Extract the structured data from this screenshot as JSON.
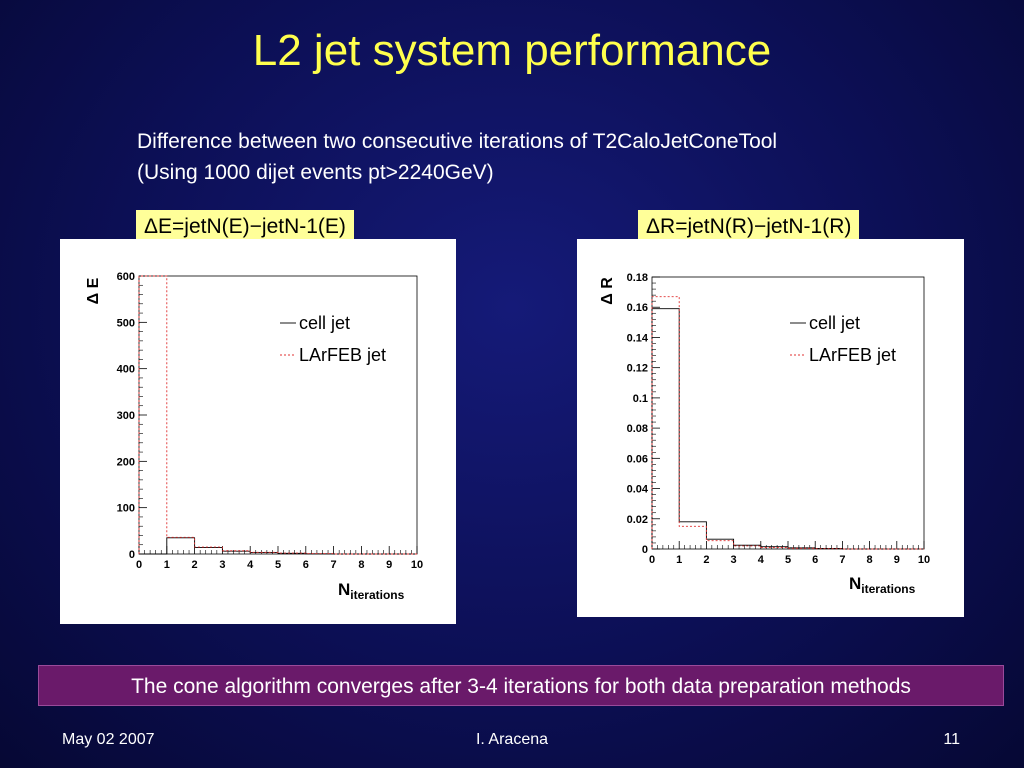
{
  "slide": {
    "title": "L2 jet system performance",
    "subtitle_line1": "Difference between two consecutive iterations of T2CaloJetConeTool",
    "subtitle_line2": "(Using 1000 dijet events pt>2240GeV)",
    "conclusion": "The cone algorithm converges after 3-4 iterations for both data preparation methods",
    "footer": {
      "date": "May 02 2007",
      "author": "I. Aracena",
      "page": "11"
    },
    "colors": {
      "title": "#ffff4d",
      "label_bg": "#ffff99",
      "conclusion_bg": "#6a1a6a",
      "cell_jet": "#000000",
      "larfeb_jet": "#e03030"
    }
  },
  "chart_data": [
    {
      "type": "bar",
      "panel_label": "ΔE=jetN(E)−jetN-1(E)",
      "ylabel": "Δ E",
      "xlabel_main": "N",
      "xlabel_sub": "iterations",
      "x_ticks": [
        "0",
        "1",
        "2",
        "3",
        "4",
        "5",
        "6",
        "7",
        "8",
        "9",
        "10"
      ],
      "y_ticks": [
        "0",
        "100",
        "200",
        "300",
        "400",
        "500",
        "600"
      ],
      "xlim": [
        0,
        10
      ],
      "ylim": [
        0,
        600
      ],
      "legend_placement": "top-right",
      "bin_edges": [
        0,
        1,
        2,
        3,
        4,
        5,
        6,
        7,
        8,
        9,
        10
      ],
      "series": [
        {
          "name": "cell jet",
          "style": "solid",
          "values": [
            0,
            35,
            14,
            6,
            3,
            1.5,
            0.5,
            0,
            0,
            0
          ]
        },
        {
          "name": "LArFEB jet",
          "style": "dashed",
          "values": [
            600,
            36,
            15,
            7,
            3.5,
            2,
            1,
            0,
            0,
            0
          ]
        }
      ]
    },
    {
      "type": "bar",
      "panel_label": "ΔR=jetN(R)−jetN-1(R)",
      "ylabel": "Δ R",
      "xlabel_main": "N",
      "xlabel_sub": "iterations",
      "x_ticks": [
        "0",
        "1",
        "2",
        "3",
        "4",
        "5",
        "6",
        "7",
        "8",
        "9",
        "10"
      ],
      "y_ticks": [
        "0",
        "0.02",
        "0.04",
        "0.06",
        "0.08",
        "0.1",
        "0.12",
        "0.14",
        "0.16",
        "0.18"
      ],
      "xlim": [
        0,
        10
      ],
      "ylim": [
        0,
        0.18
      ],
      "legend_placement": "top-right",
      "bin_edges": [
        0,
        1,
        2,
        3,
        4,
        5,
        6,
        7,
        8,
        9,
        10
      ],
      "series": [
        {
          "name": "cell jet",
          "style": "solid",
          "values": [
            0.159,
            0.018,
            0.0065,
            0.0025,
            0.0015,
            0.0008,
            0.0004,
            0,
            0,
            0
          ]
        },
        {
          "name": "LArFEB jet",
          "style": "dashed",
          "values": [
            0.167,
            0.015,
            0.0055,
            0.002,
            0.001,
            0.0005,
            0.0002,
            0,
            0,
            0
          ]
        }
      ]
    }
  ]
}
